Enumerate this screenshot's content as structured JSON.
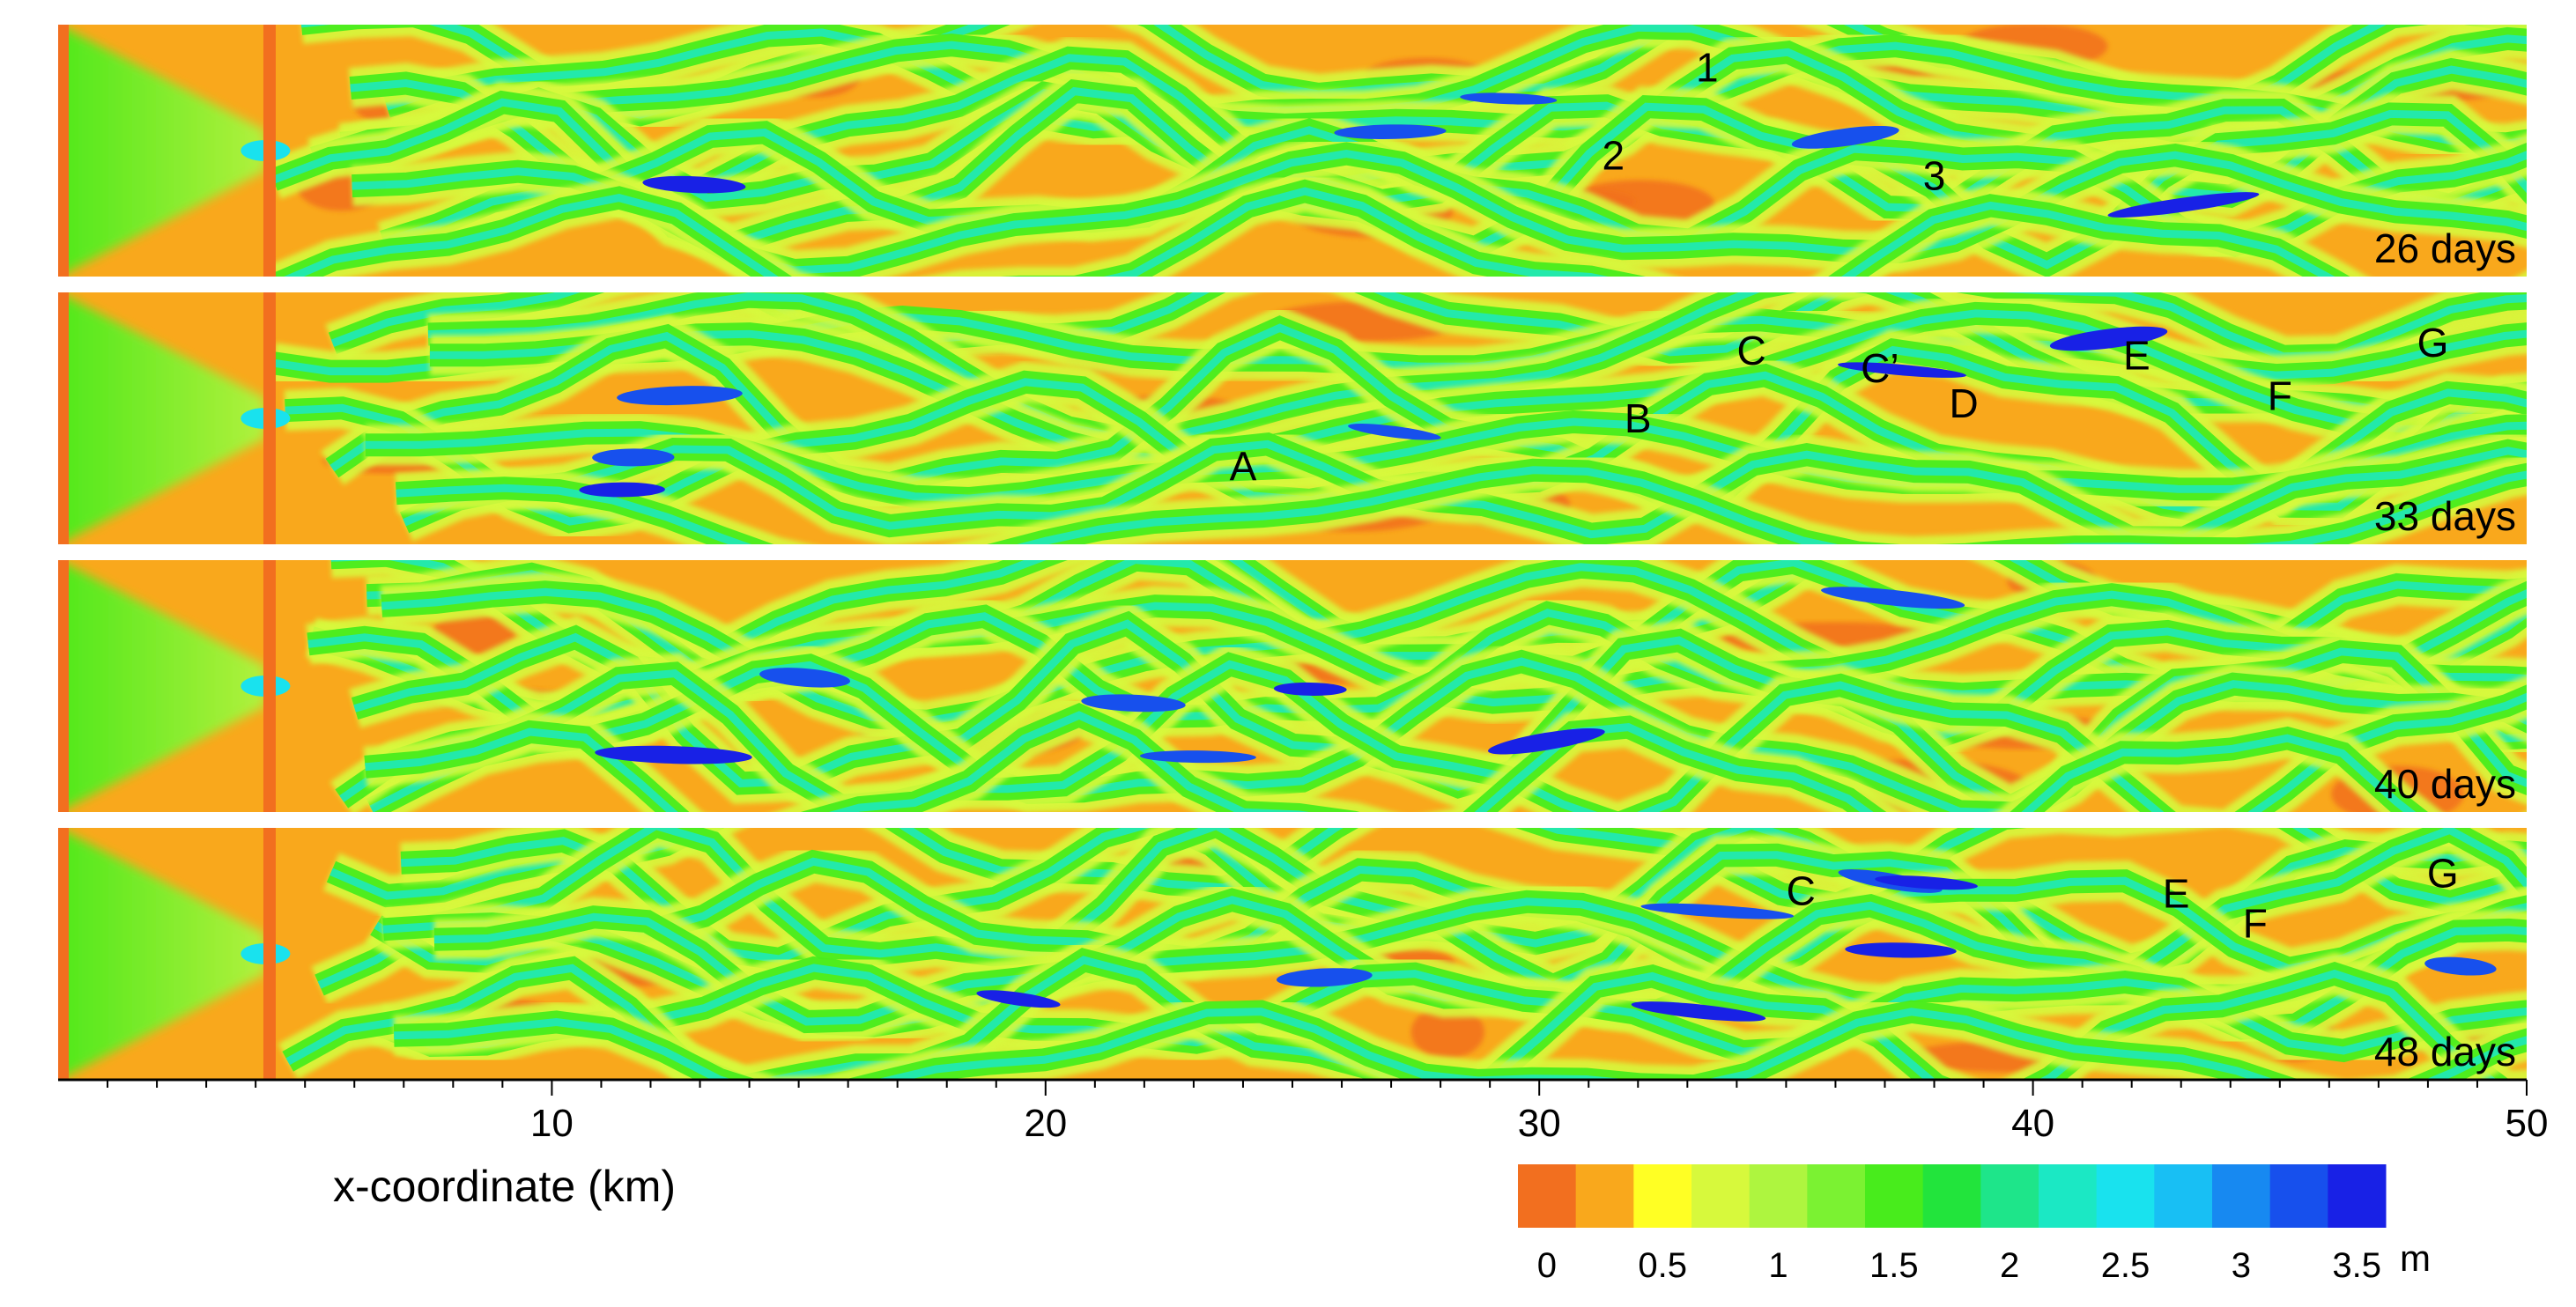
{
  "chart_data": {
    "type": "heatmap",
    "x_axis": {
      "label": "x-coordinate (km)",
      "range": [
        0,
        50
      ],
      "ticks": [
        10,
        20,
        30,
        40,
        50
      ]
    },
    "colorbar": {
      "unit": "m",
      "range": [
        0,
        3.75
      ],
      "levels": 15,
      "tick_values": [
        0,
        0.5,
        1,
        1.5,
        2,
        2.5,
        3,
        3.5
      ],
      "tick_labels": [
        "0",
        "0.5",
        "1",
        "1.5",
        "2",
        "2.5",
        "3",
        "3.5"
      ],
      "colors": [
        "#f26f1f",
        "#f9a81c",
        "#ffff24",
        "#d7f93c",
        "#aef53f",
        "#7bf232",
        "#48ec1c",
        "#22e43c",
        "#1ee58a",
        "#1be8c4",
        "#19e2ee",
        "#18bff4",
        "#1789f1",
        "#1750ed",
        "#1821e6"
      ]
    },
    "panels": [
      {
        "time_label": "26 days",
        "labels": [
          {
            "text": "1",
            "x": 33.4,
            "y": 0.83
          },
          {
            "text": "2",
            "x": 31.5,
            "y": 0.48
          },
          {
            "text": "3",
            "x": 38.0,
            "y": 0.4
          }
        ]
      },
      {
        "time_label": "33 days",
        "labels": [
          {
            "text": "A",
            "x": 24.0,
            "y": 0.31
          },
          {
            "text": "B",
            "x": 32.0,
            "y": 0.5
          },
          {
            "text": "C",
            "x": 34.3,
            "y": 0.77
          },
          {
            "text": "C’",
            "x": 36.9,
            "y": 0.7
          },
          {
            "text": "D",
            "x": 38.6,
            "y": 0.56
          },
          {
            "text": "E",
            "x": 42.1,
            "y": 0.75
          },
          {
            "text": "F",
            "x": 45.0,
            "y": 0.59
          },
          {
            "text": "G",
            "x": 48.1,
            "y": 0.8
          }
        ]
      },
      {
        "time_label": "40 days",
        "labels": []
      },
      {
        "time_label": "48 days",
        "labels": [
          {
            "text": "C",
            "x": 35.3,
            "y": 0.75
          },
          {
            "text": "E",
            "x": 42.9,
            "y": 0.74
          },
          {
            "text": "F",
            "x": 44.5,
            "y": 0.62
          },
          {
            "text": "G",
            "x": 48.3,
            "y": 0.82
          }
        ]
      }
    ]
  }
}
